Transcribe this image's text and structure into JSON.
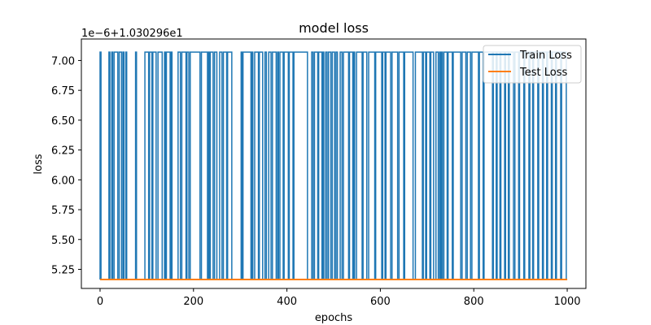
{
  "chart_data": {
    "type": "line",
    "title": "model loss",
    "xlabel": "epochs",
    "ylabel": "loss",
    "offset_label": "1e−6+1.030296e1",
    "xlim": [
      -40,
      1040
    ],
    "ylim": [
      5.09,
      7.18
    ],
    "xticks": [
      0,
      200,
      400,
      600,
      800,
      1000
    ],
    "yticks": [
      5.25,
      5.5,
      5.75,
      6.0,
      6.25,
      6.5,
      6.75,
      7.0
    ],
    "ytick_labels": [
      "5.25",
      "5.50",
      "5.75",
      "6.00",
      "6.25",
      "6.50",
      "6.75",
      "7.00"
    ],
    "grid": false,
    "legend_position": "top-right",
    "series": [
      {
        "name": "Train Loss",
        "color": "#1f77b4",
        "low_value": 5.165,
        "high_value": 7.07,
        "high_ranges": [
          [
            0,
            2
          ],
          [
            19,
            21
          ],
          [
            25,
            27
          ],
          [
            30,
            38
          ],
          [
            41,
            46
          ],
          [
            49,
            51
          ],
          [
            55,
            57
          ],
          [
            76,
            78
          ],
          [
            96,
            104
          ],
          [
            106,
            111
          ],
          [
            113,
            120
          ],
          [
            124,
            133
          ],
          [
            138,
            140
          ],
          [
            142,
            150
          ],
          [
            152,
            154
          ],
          [
            167,
            172
          ],
          [
            175,
            184
          ],
          [
            186,
            190
          ],
          [
            193,
            214
          ],
          [
            217,
            230
          ],
          [
            232,
            234
          ],
          [
            236,
            242
          ],
          [
            245,
            250
          ],
          [
            256,
            261
          ],
          [
            264,
            271
          ],
          [
            273,
            282
          ],
          [
            302,
            304
          ],
          [
            306,
            323
          ],
          [
            325,
            327
          ],
          [
            331,
            339
          ],
          [
            341,
            348
          ],
          [
            353,
            356
          ],
          [
            361,
            366
          ],
          [
            369,
            377
          ],
          [
            380,
            382
          ],
          [
            385,
            392
          ],
          [
            394,
            403
          ],
          [
            405,
            413
          ],
          [
            415,
            444
          ],
          [
            453,
            456
          ],
          [
            459,
            466
          ],
          [
            468,
            475
          ],
          [
            477,
            479
          ],
          [
            483,
            486
          ],
          [
            489,
            494
          ],
          [
            497,
            502
          ],
          [
            505,
            508
          ],
          [
            514,
            518
          ],
          [
            521,
            532
          ],
          [
            534,
            541
          ],
          [
            543,
            545
          ],
          [
            549,
            561
          ],
          [
            563,
            571
          ],
          [
            575,
            588
          ],
          [
            590,
            603
          ],
          [
            605,
            610
          ],
          [
            612,
            622
          ],
          [
            625,
            637
          ],
          [
            640,
            650
          ],
          [
            652,
            670
          ],
          [
            675,
            690
          ],
          [
            692,
            697
          ],
          [
            699,
            706
          ],
          [
            708,
            714
          ],
          [
            719,
            724
          ],
          [
            727,
            729
          ],
          [
            731,
            733
          ],
          [
            736,
            743
          ],
          [
            745,
            754
          ],
          [
            756,
            772
          ],
          [
            775,
            783
          ],
          [
            786,
            793
          ],
          [
            796,
            810
          ],
          [
            812,
            820
          ],
          [
            822,
            840
          ],
          [
            842,
            848
          ],
          [
            850,
            856
          ],
          [
            858,
            866
          ],
          [
            868,
            874
          ],
          [
            876,
            885
          ],
          [
            888,
            896
          ],
          [
            898,
            907
          ],
          [
            909,
            918
          ],
          [
            920,
            926
          ],
          [
            928,
            937
          ],
          [
            939,
            947
          ],
          [
            949,
            956
          ],
          [
            958,
            966
          ],
          [
            968,
            975
          ],
          [
            977,
            986
          ],
          [
            988,
            998
          ]
        ]
      },
      {
        "name": "Test Loss",
        "color": "#ff7f0e",
        "x": [
          0,
          1000
        ],
        "y": [
          5.165,
          5.165
        ]
      }
    ]
  }
}
